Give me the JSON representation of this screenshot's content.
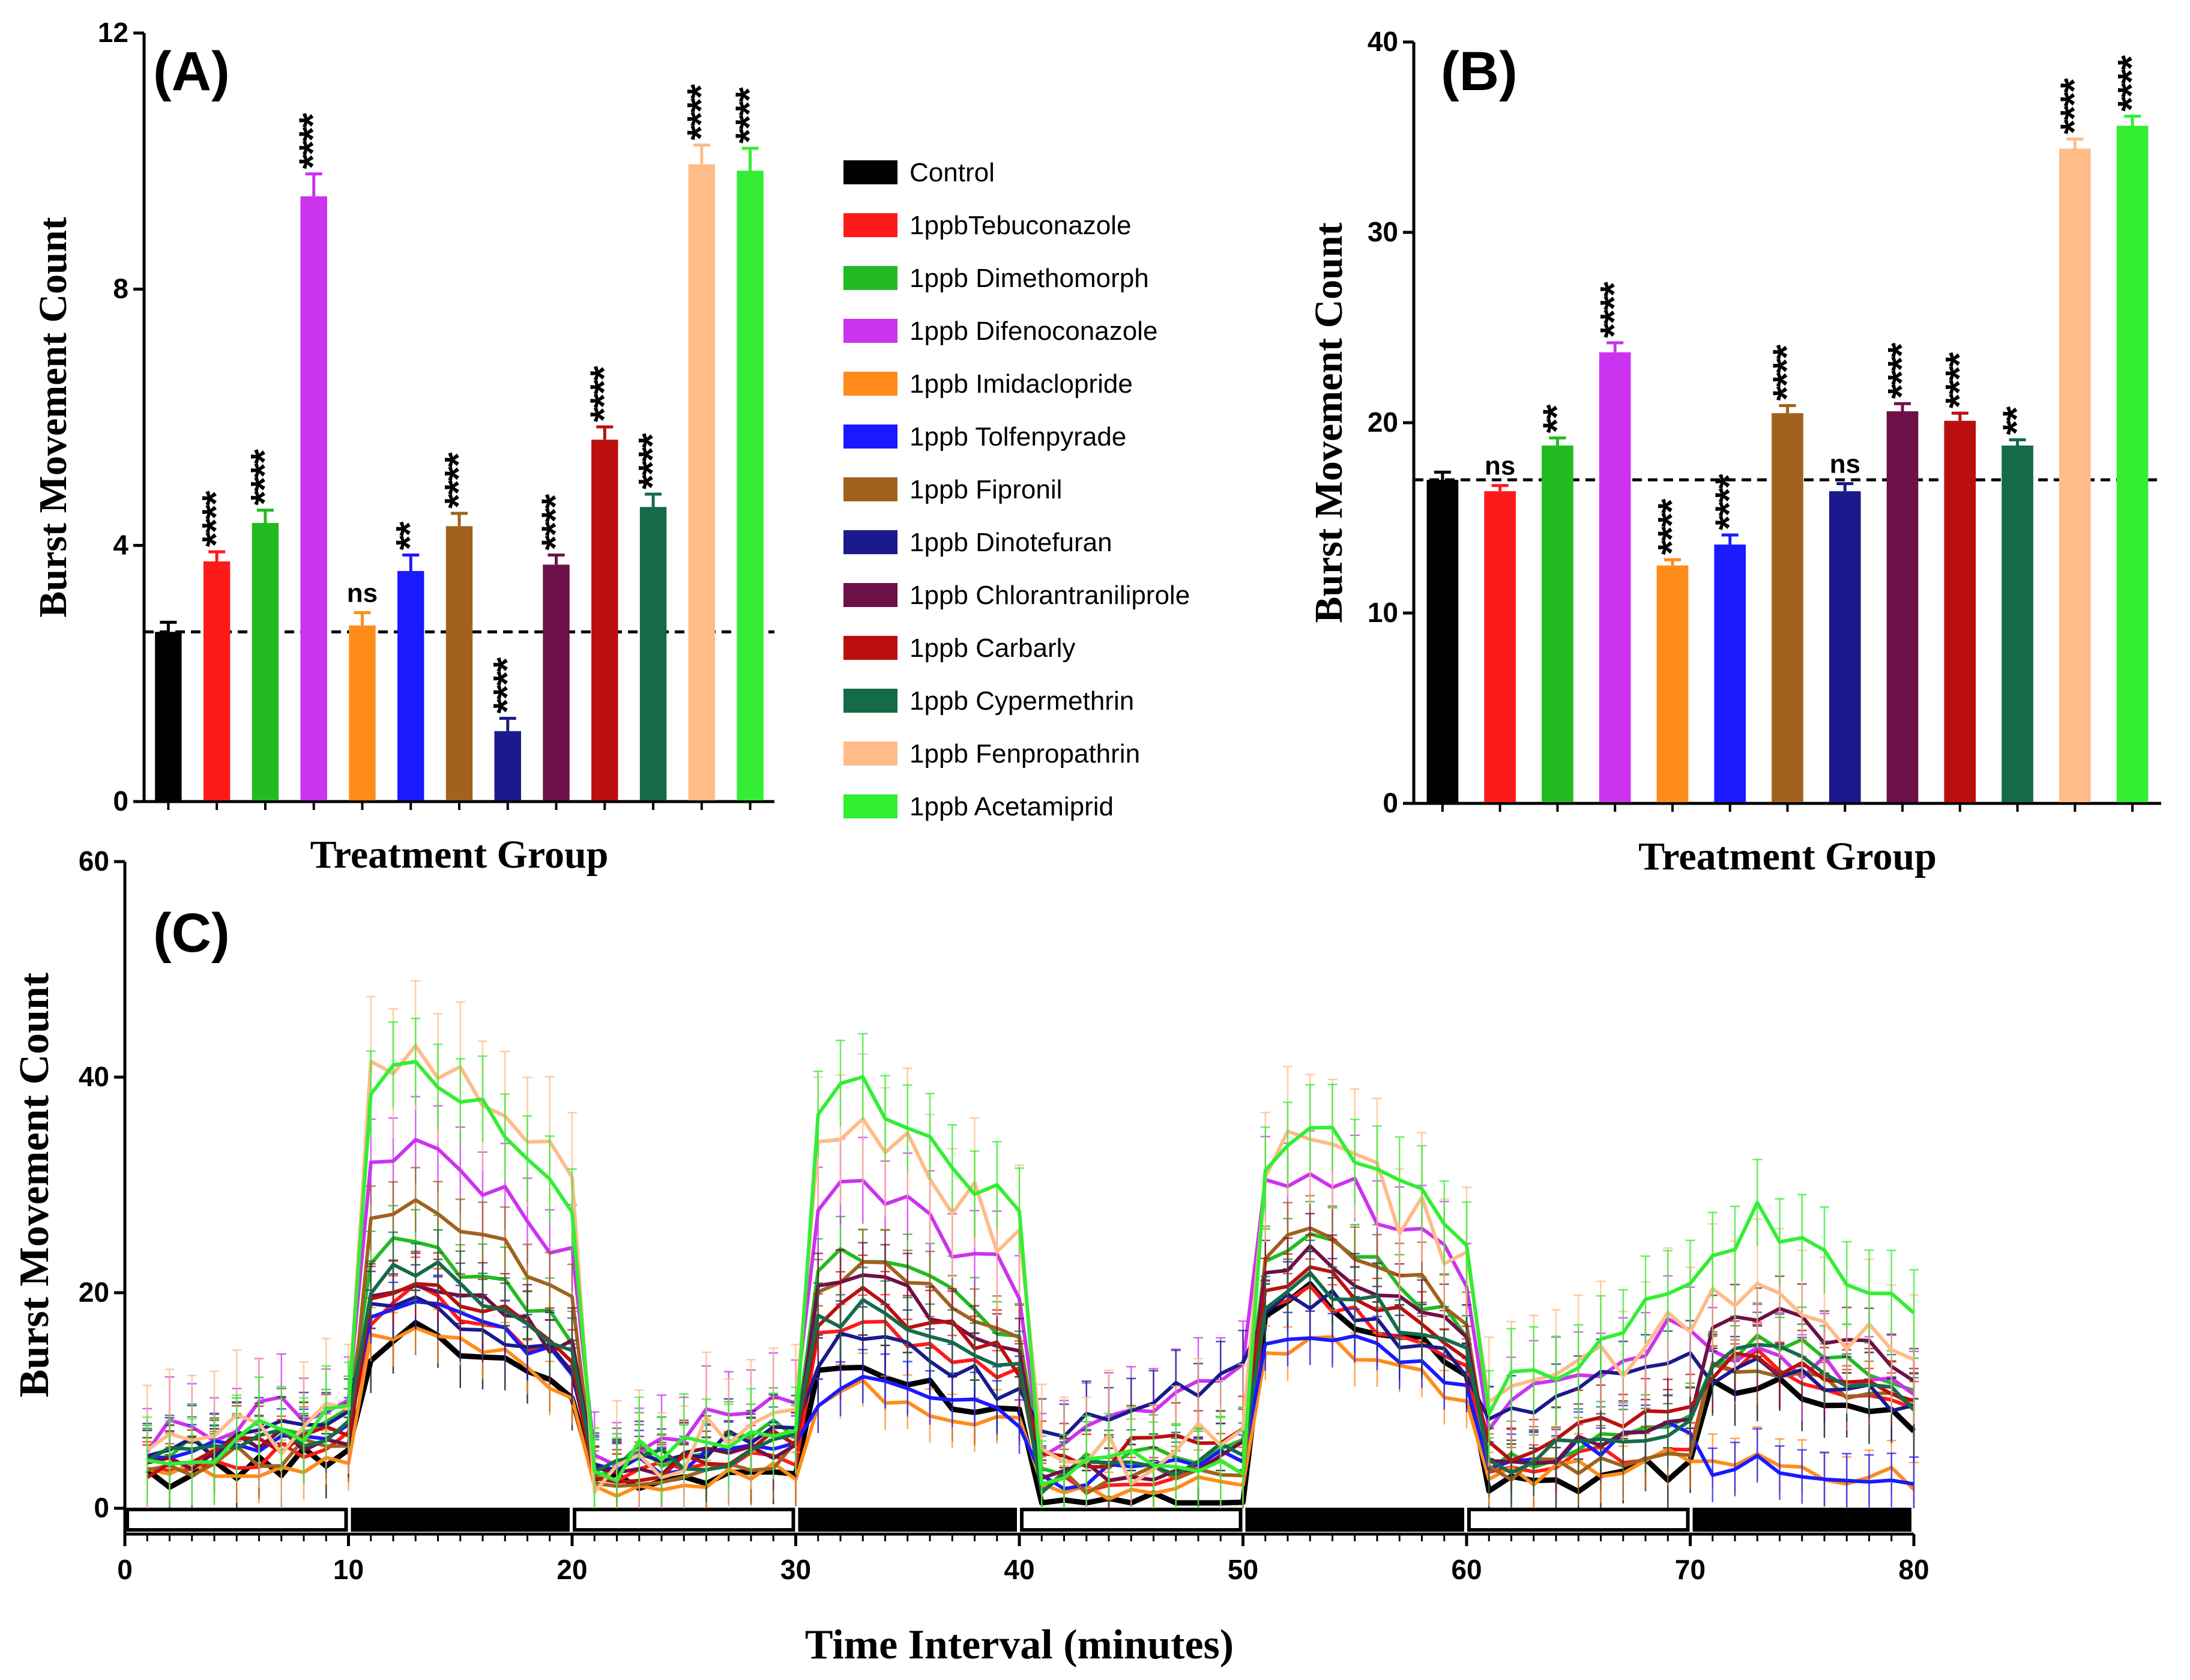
{
  "figure": {
    "panel_a_label": "(A)",
    "panel_b_label": "(B)",
    "panel_c_label": "(C)"
  },
  "legend": [
    {
      "name": "Control",
      "color": "#000000"
    },
    {
      "name": "1ppbTebuconazole",
      "color": "#ff1a1a"
    },
    {
      "name": "1ppb Dimethomorph",
      "color": "#22bb22"
    },
    {
      "name": "1ppb Difenoconazole",
      "color": "#cc33ee"
    },
    {
      "name": "1ppb Imidaclopride",
      "color": "#ff8c1a"
    },
    {
      "name": "1ppb Tolfenpyrade",
      "color": "#1a1aff"
    },
    {
      "name": "1ppb Fipronil",
      "color": "#a0621e"
    },
    {
      "name": "1ppb Dinotefuran",
      "color": "#1a1a8c"
    },
    {
      "name": "1ppb Chlorantraniliprole",
      "color": "#6e1048"
    },
    {
      "name": "1ppb Carbarly",
      "color": "#bb0f0f"
    },
    {
      "name": "1ppb Cypermethrin",
      "color": "#156b48"
    },
    {
      "name": "1ppb Fenpropathrin",
      "color": "#ffbb88"
    },
    {
      "name": "1ppb Acetamiprid",
      "color": "#33ee33"
    }
  ],
  "chart_data": [
    {
      "panel": "(A)",
      "type": "bar",
      "xlabel": "Treatment Group",
      "ylabel": "Burst Movement Count",
      "ylim": [
        0,
        12
      ],
      "yticks": [
        0,
        4,
        8,
        12
      ],
      "control_reference_line": 2.65,
      "categories": [
        "Control",
        "1ppbTebuconazole",
        "1ppb Dimethomorph",
        "1ppb Difenoconazole",
        "1ppb Imidaclopride",
        "1ppb Tolfenpyrade",
        "1ppb Fipronil",
        "1ppb Dinotefuran",
        "1ppb Chlorantraniliprole",
        "1ppb Carbarly",
        "1ppb Cypermethrin",
        "1ppb Fenpropathrin",
        "1ppb Acetamiprid"
      ],
      "values": [
        2.65,
        3.75,
        4.35,
        9.45,
        2.75,
        3.6,
        4.3,
        1.1,
        3.7,
        5.65,
        4.6,
        9.95,
        9.85
      ],
      "errors": [
        0.15,
        0.15,
        0.2,
        0.35,
        0.2,
        0.25,
        0.2,
        0.2,
        0.15,
        0.2,
        0.2,
        0.3,
        0.35
      ],
      "significance": [
        "",
        "****",
        "****",
        "****",
        "ns",
        "**",
        "****",
        "****",
        "****",
        "****",
        "****",
        "****",
        "****"
      ]
    },
    {
      "panel": "(B)",
      "type": "bar",
      "xlabel": "Treatment Group",
      "ylabel": "Burst Movement Count",
      "ylim": [
        0,
        40
      ],
      "yticks": [
        0,
        10,
        20,
        30,
        40
      ],
      "control_reference_line": 17,
      "categories": [
        "Control",
        "1ppbTebuconazole",
        "1ppb Dimethomorph",
        "1ppb Difenoconazole",
        "1ppb Imidaclopride",
        "1ppb Tolfenpyrade",
        "1ppb Fipronil",
        "1ppb Dinotefuran",
        "1ppb Chlorantraniliprole",
        "1ppb Carbarly",
        "1ppb Cypermethrin",
        "1ppb Fenpropathrin",
        "1ppb Acetamiprid"
      ],
      "values": [
        17.0,
        16.4,
        18.8,
        23.7,
        12.5,
        13.6,
        20.5,
        16.4,
        20.6,
        20.1,
        18.8,
        34.4,
        35.6
      ],
      "errors": [
        0.4,
        0.3,
        0.4,
        0.5,
        0.3,
        0.5,
        0.4,
        0.4,
        0.4,
        0.4,
        0.3,
        0.5,
        0.5
      ],
      "significance": [
        "",
        "ns",
        "**",
        "****",
        "****",
        "****",
        "****",
        "ns",
        "****",
        "****",
        "**",
        "****",
        "****"
      ]
    },
    {
      "panel": "(C)",
      "type": "line",
      "xlabel": "Time Interval (minutes)",
      "ylabel": "Burst Movement Count",
      "xlim": [
        0,
        80
      ],
      "ylim": [
        0,
        60
      ],
      "xticks": [
        0,
        10,
        20,
        30,
        40,
        50,
        60,
        70,
        80
      ],
      "yticks": [
        0,
        20,
        40,
        60
      ],
      "light_dark_cycle": [
        {
          "start": 0,
          "end": 10,
          "phase": "light"
        },
        {
          "start": 10,
          "end": 20,
          "phase": "dark"
        },
        {
          "start": 20,
          "end": 30,
          "phase": "light"
        },
        {
          "start": 30,
          "end": 40,
          "phase": "dark"
        },
        {
          "start": 40,
          "end": 50,
          "phase": "light"
        },
        {
          "start": 50,
          "end": 60,
          "phase": "dark"
        },
        {
          "start": 60,
          "end": 70,
          "phase": "light"
        },
        {
          "start": 70,
          "end": 80,
          "phase": "dark"
        }
      ],
      "series": [
        {
          "name": "Control",
          "light": [
            3,
            1,
            3
          ],
          "dark": [
            17,
            13,
            20,
            12
          ],
          "error": 3,
          "width": 9
        },
        {
          "name": "1ppbTebuconazole",
          "light": [
            4,
            3,
            5
          ],
          "dark": [
            20,
            18,
            20,
            14
          ],
          "error": 2.5,
          "width": 6
        },
        {
          "name": "1ppb Dimethomorph",
          "light": [
            6,
            5,
            6
          ],
          "dark": [
            25,
            24,
            26,
            16
          ],
          "error": 3,
          "width": 6
        },
        {
          "name": "1ppb Difenoconazole",
          "light": [
            8,
            10,
            14
          ],
          "dark": [
            35,
            31,
            33,
            15
          ],
          "error": 4,
          "width": 6
        },
        {
          "name": "1ppb Imidaclopride",
          "light": [
            3,
            2,
            4
          ],
          "dark": [
            17,
            11,
            16,
            4
          ],
          "error": 2.5,
          "width": 6
        },
        {
          "name": "1ppb Tolfenpyrade",
          "light": [
            5,
            4,
            6
          ],
          "dark": [
            20,
            12,
            17,
            4
          ],
          "error": 2.5,
          "width": 6
        },
        {
          "name": "1ppb Fipronil",
          "light": [
            4,
            3,
            5
          ],
          "dark": [
            30,
            23,
            27,
            14
          ],
          "error": 3,
          "width": 6
        },
        {
          "name": "1ppb Dinotefuran",
          "light": [
            6,
            10,
            12
          ],
          "dark": [
            20,
            16,
            20,
            14
          ],
          "error": 3,
          "width": 6
        },
        {
          "name": "1ppb Chlorantraniliprole",
          "light": [
            5,
            4,
            6
          ],
          "dark": [
            22,
            22,
            24,
            19
          ],
          "error": 3,
          "width": 6
        },
        {
          "name": "1ppb Carbarly",
          "light": [
            5,
            6,
            8
          ],
          "dark": [
            22,
            20,
            22,
            14
          ],
          "error": 3,
          "width": 6
        },
        {
          "name": "1ppb Cypermethrin",
          "light": [
            5,
            4,
            6
          ],
          "dark": [
            23,
            19,
            22,
            15
          ],
          "error": 3,
          "width": 6
        },
        {
          "name": "1ppb Fenpropathrin",
          "light": [
            6,
            5,
            14
          ],
          "dark": [
            45,
            37,
            35,
            21
          ],
          "error": 6,
          "width": 6
        },
        {
          "name": "1ppb Acetamiprid",
          "light": [
            6,
            4,
            16
          ],
          "dark": [
            43,
            40,
            37,
            27
          ],
          "error": 4,
          "width": 6
        }
      ]
    }
  ]
}
